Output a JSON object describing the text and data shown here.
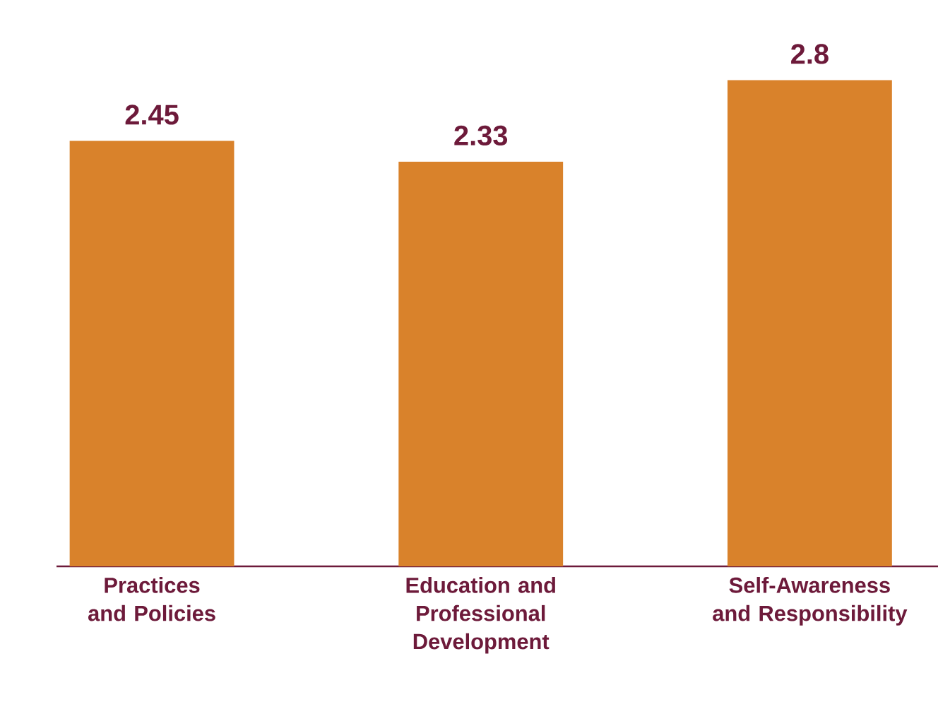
{
  "chart_data": {
    "type": "bar",
    "categories": [
      "Practices and Policies",
      "Education and Professional Development",
      "Self-Awareness and Responsibility"
    ],
    "values": [
      2.45,
      2.33,
      2.8
    ],
    "color": "#d9822b",
    "data_labels": true
  }
}
